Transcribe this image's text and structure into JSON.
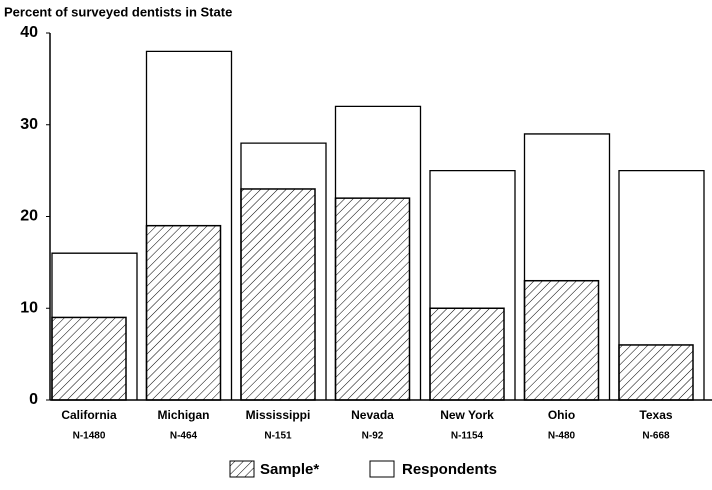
{
  "chart_data": {
    "type": "bar",
    "title": "Percent of surveyed dentists in State",
    "categories": [
      "California",
      "Michigan",
      "Mississippi",
      "Nevada",
      "New York",
      "Ohio",
      "Texas"
    ],
    "sublabels": [
      "N-1480",
      "N-464",
      "N-151",
      "N-92",
      "N-1154",
      "N-480",
      "N-668"
    ],
    "series": [
      {
        "name": "Sample*",
        "color": "#000000",
        "values": [
          9,
          19,
          23,
          22,
          10,
          13,
          6
        ]
      },
      {
        "name": "Respondents",
        "color": "#000000",
        "values": [
          16,
          38,
          28,
          32,
          25,
          29,
          25
        ]
      }
    ],
    "ylim": [
      0,
      40
    ],
    "yticks": [
      0,
      10,
      20,
      30,
      40
    ]
  }
}
